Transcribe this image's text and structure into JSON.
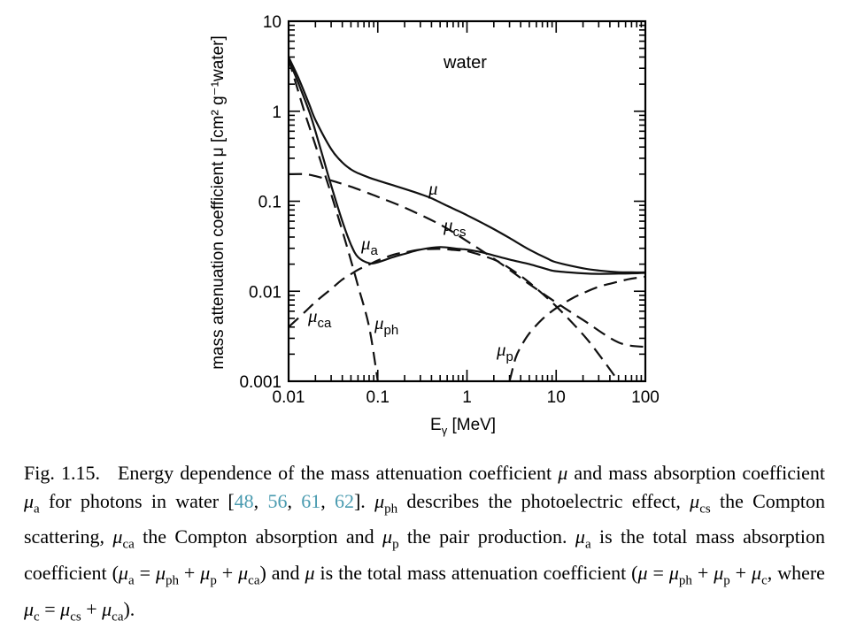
{
  "chart_data": {
    "type": "line",
    "title": "water",
    "xlabel": "E",
    "xlabel_sub": "γ",
    "xlabel_unit": " [MeV]",
    "ylabel": "mass attenuation coefficient μ [cm² g⁻¹water]",
    "xscale": "log",
    "yscale": "log",
    "xlim": [
      0.01,
      100
    ],
    "ylim": [
      0.001,
      10
    ],
    "xticks": [
      "0.01",
      "0.1",
      "1",
      "10",
      "100"
    ],
    "yticks": [
      "0.001",
      "0.01",
      "0.1",
      "1",
      "10"
    ],
    "grid": false,
    "series": [
      {
        "name": "μ",
        "sym": "μ",
        "sub": "",
        "style": "solid",
        "x": [
          0.01,
          0.013,
          0.017,
          0.02,
          0.03,
          0.04,
          0.05,
          0.06,
          0.08,
          0.1,
          0.15,
          0.2,
          0.3,
          0.4,
          0.5,
          0.6,
          0.8,
          1,
          1.5,
          2,
          3,
          5,
          8,
          10,
          20,
          30,
          50,
          70,
          100
        ],
        "y": [
          4.0,
          2.3,
          1.2,
          0.8,
          0.38,
          0.27,
          0.226,
          0.205,
          0.183,
          0.17,
          0.15,
          0.137,
          0.12,
          0.108,
          0.097,
          0.089,
          0.078,
          0.07,
          0.057,
          0.049,
          0.039,
          0.029,
          0.023,
          0.021,
          0.018,
          0.017,
          0.0163,
          0.0162,
          0.0162
        ]
      },
      {
        "name": "μa",
        "sym": "μ",
        "sub": "a",
        "style": "solid",
        "x": [
          0.01,
          0.013,
          0.017,
          0.02,
          0.025,
          0.03,
          0.04,
          0.05,
          0.06,
          0.08,
          0.1,
          0.15,
          0.2,
          0.3,
          0.5,
          0.8,
          1,
          1.5,
          2,
          3,
          5,
          8,
          10,
          20,
          30,
          50,
          70,
          100
        ],
        "y": [
          3.8,
          2.0,
          1.0,
          0.6,
          0.28,
          0.15,
          0.06,
          0.033,
          0.024,
          0.0205,
          0.021,
          0.024,
          0.026,
          0.029,
          0.031,
          0.0295,
          0.029,
          0.027,
          0.025,
          0.0225,
          0.02,
          0.0175,
          0.0167,
          0.0158,
          0.0156,
          0.0157,
          0.0158,
          0.016
        ]
      },
      {
        "name": "μcs",
        "sym": "μ",
        "sub": "cs",
        "style": "dashed",
        "x": [
          0.01,
          0.015,
          0.02,
          0.03,
          0.05,
          0.08,
          0.1,
          0.2,
          0.5,
          1,
          2,
          5,
          10,
          20,
          50,
          100
        ],
        "y": [
          0.2,
          0.2,
          0.19,
          0.17,
          0.145,
          0.122,
          0.112,
          0.085,
          0.055,
          0.036,
          0.023,
          0.012,
          0.0075,
          0.0048,
          0.0027,
          0.0024
        ]
      },
      {
        "name": "μph",
        "sym": "μ",
        "sub": "ph",
        "style": "dashed",
        "x": [
          0.01,
          0.015,
          0.02,
          0.03,
          0.04,
          0.05,
          0.06,
          0.08,
          0.1
        ],
        "y": [
          3.8,
          1.0,
          0.42,
          0.12,
          0.047,
          0.022,
          0.0115,
          0.004,
          0.001
        ]
      },
      {
        "name": "μca",
        "sym": "μ",
        "sub": "ca",
        "style": "dashed",
        "x": [
          0.01,
          0.015,
          0.02,
          0.03,
          0.04,
          0.05,
          0.06,
          0.08,
          0.1,
          0.15,
          0.2,
          0.3,
          0.5,
          0.8,
          1,
          2,
          3,
          5,
          10,
          20,
          30,
          50
        ],
        "y": [
          0.004,
          0.0058,
          0.0076,
          0.0106,
          0.0135,
          0.0155,
          0.0173,
          0.0198,
          0.022,
          0.0255,
          0.027,
          0.029,
          0.0295,
          0.0285,
          0.028,
          0.0225,
          0.018,
          0.0125,
          0.0068,
          0.0033,
          0.002,
          0.001
        ]
      },
      {
        "name": "μp",
        "sym": "μ",
        "sub": "p",
        "style": "dashed",
        "x": [
          3,
          3.5,
          4,
          5,
          7,
          10,
          15,
          20,
          30,
          50,
          70,
          100
        ],
        "y": [
          0.001,
          0.0018,
          0.0024,
          0.0034,
          0.0049,
          0.0065,
          0.0083,
          0.0095,
          0.0112,
          0.0128,
          0.0138,
          0.0145
        ]
      }
    ]
  },
  "caption": {
    "lead": "Fig. 1.15.",
    "text": [
      {
        "t": "Energy dependence of the mass attenuation coefficient "
      },
      {
        "m": "μ"
      },
      {
        "t": " and mass absorption coefficient "
      },
      {
        "m": "μ",
        "s": "a"
      },
      {
        "t": " for photons in water ["
      },
      {
        "c": "48"
      },
      {
        "t": ", "
      },
      {
        "c": "56"
      },
      {
        "t": ", "
      },
      {
        "c": "61"
      },
      {
        "t": ", "
      },
      {
        "c": "62"
      },
      {
        "t": "]. "
      },
      {
        "m": "μ",
        "s": "ph"
      },
      {
        "t": " describes the photoelectric effect, "
      },
      {
        "m": "μ",
        "s": "cs"
      },
      {
        "t": " the Compton scattering, "
      },
      {
        "m": "μ",
        "s": "ca"
      },
      {
        "t": " the Compton absorption and "
      },
      {
        "m": "μ",
        "s": "p"
      },
      {
        "t": " the pair production. "
      },
      {
        "m": "μ",
        "s": "a"
      },
      {
        "t": " is the total mass absorption coefficient ("
      },
      {
        "m": "μ",
        "s": "a"
      },
      {
        "t": " = "
      },
      {
        "m": "μ",
        "s": "ph"
      },
      {
        "t": " + "
      },
      {
        "m": "μ",
        "s": "p"
      },
      {
        "t": " + "
      },
      {
        "m": "μ",
        "s": "ca"
      },
      {
        "t": ") and "
      },
      {
        "m": "μ"
      },
      {
        "t": " is the total mass attenuation coefficient ("
      },
      {
        "m": "μ"
      },
      {
        "t": " = "
      },
      {
        "m": "μ",
        "s": "ph"
      },
      {
        "t": " + "
      },
      {
        "m": "μ",
        "s": "p"
      },
      {
        "t": " + "
      },
      {
        "m": "μ",
        "s": "c"
      },
      {
        "t": ", where "
      },
      {
        "m": "μ",
        "s": "c"
      },
      {
        "t": " = "
      },
      {
        "m": "μ",
        "s": "cs"
      },
      {
        "t": " + "
      },
      {
        "m": "μ",
        "s": "ca"
      },
      {
        "t": ")."
      }
    ]
  }
}
